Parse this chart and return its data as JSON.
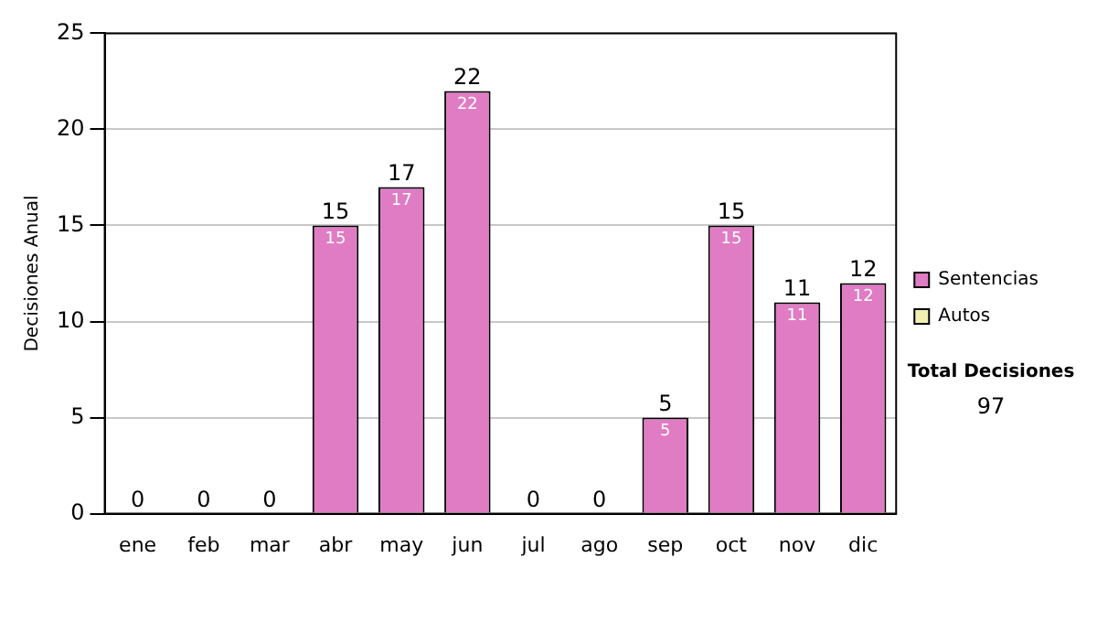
{
  "chart_data": {
    "type": "bar",
    "ylabel": "Decisiones Anual",
    "categories": [
      "ene",
      "feb",
      "mar",
      "abr",
      "may",
      "jun",
      "jul",
      "ago",
      "sep",
      "oct",
      "nov",
      "dic"
    ],
    "series": [
      {
        "name": "Sentencias",
        "color": "#e07cc4",
        "values": [
          0,
          0,
          0,
          15,
          17,
          22,
          0,
          0,
          5,
          15,
          11,
          12
        ],
        "value_labels": [
          null,
          null,
          null,
          "15",
          "17",
          "22",
          null,
          null,
          "5",
          "15",
          "11",
          "12"
        ]
      },
      {
        "name": "Autos",
        "color": "#f0f0b0",
        "values": [
          0,
          0,
          0,
          0,
          0,
          0,
          0,
          0,
          0,
          0,
          0,
          0
        ]
      }
    ],
    "stacked": true,
    "totals": [
      "0",
      "0",
      "0",
      "15",
      "17",
      "22",
      "0",
      "0",
      "5",
      "15",
      "11",
      "12"
    ],
    "ylim": [
      0,
      25
    ],
    "yticks": [
      0,
      5,
      10,
      15,
      20,
      25
    ],
    "grid": "y",
    "legend": "right",
    "annotations": [
      "Total Decisiones",
      "97"
    ]
  }
}
